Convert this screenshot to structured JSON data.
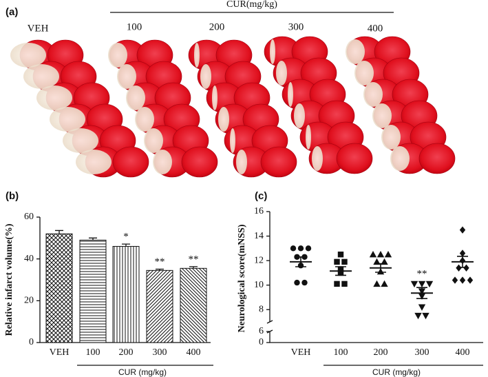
{
  "figure": {
    "panel_a": {
      "label": "(a)",
      "group_label": "CUR(mg/kg)",
      "columns": [
        "VEH",
        "100",
        "200",
        "300",
        "400"
      ]
    }
  },
  "chart_data": [
    {
      "type": "bar",
      "label": "(b)",
      "ylabel": "Relative infarct volume(%)",
      "xlabel": "CUR (mg/kg)",
      "categories": [
        "VEH",
        "100",
        "200",
        "300",
        "400"
      ],
      "values": [
        52,
        49,
        46,
        34.5,
        35.5
      ],
      "errors": [
        1.6,
        1,
        1.1,
        0.6,
        0.8
      ],
      "annotations": [
        null,
        null,
        "*",
        "**",
        "**"
      ],
      "fills": [
        "crosshatch",
        "horizontal",
        "vertical",
        "diagonal",
        "diagonal-reverse"
      ],
      "ylim": [
        0,
        60
      ],
      "yticks": [
        0,
        20,
        40,
        60
      ]
    },
    {
      "type": "scatter",
      "label": "(c)",
      "ylabel": "Neurological  score(mNSS)",
      "xlabel": "CUR (mg/kg)",
      "categories": [
        "VEH",
        "100",
        "200",
        "300",
        "400"
      ],
      "markers": [
        "circle",
        "square",
        "triangle",
        "triangle-down",
        "diamond"
      ],
      "points": [
        [
          13,
          13,
          13,
          12.3,
          12.3,
          11.6,
          10.2,
          10.2
        ],
        [
          12.5,
          11.9,
          11.9,
          11.3,
          11,
          10.1,
          10.1
        ],
        [
          12.5,
          12.5,
          12.5,
          11.9,
          11.9,
          11.1,
          10.1,
          10.1
        ],
        [
          10.1,
          10.1,
          10.1,
          9.5,
          9.1,
          8.2,
          7.5,
          7.5
        ],
        [
          14.5,
          12.6,
          12,
          11.4,
          11.4,
          10.4,
          10.4,
          10.4
        ]
      ],
      "means": [
        11.9,
        11.15,
        11.4,
        9.35,
        11.9
      ],
      "sem": [
        0.4,
        0.35,
        0.35,
        0.45,
        0.45
      ],
      "annotations": [
        null,
        null,
        null,
        "**",
        null
      ],
      "ylim": [
        0,
        16
      ],
      "ybreak": [
        6,
        7
      ],
      "yticks": [
        0,
        6,
        8,
        10,
        12,
        14,
        16
      ]
    }
  ]
}
